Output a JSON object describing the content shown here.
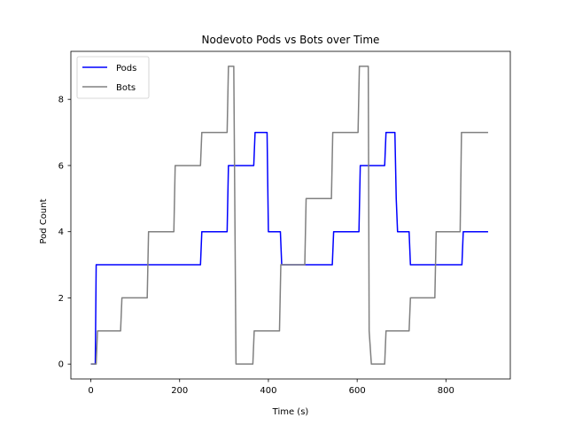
{
  "chart_data": {
    "type": "line",
    "title": "Nodevoto Pods vs Bots over Time",
    "xlabel": "Time (s)",
    "ylabel": "Pod Count",
    "xlim": [
      -45,
      945
    ],
    "ylim": [
      -0.45,
      9.45
    ],
    "xticks": [
      0,
      200,
      400,
      600,
      800
    ],
    "yticks": [
      0,
      2,
      4,
      6,
      8
    ],
    "legend_position": "top-left",
    "series": [
      {
        "name": "Pods",
        "color": "#0000ff",
        "x": [
          0,
          10,
          12,
          247,
          250,
          307,
          310,
          367,
          370,
          397,
          400,
          427,
          430,
          544,
          547,
          604,
          607,
          662,
          665,
          685,
          688,
          691,
          717,
          720,
          836,
          839,
          895
        ],
        "y": [
          0,
          0,
          3,
          3,
          4,
          4,
          6,
          6,
          7,
          7,
          4,
          4,
          3,
          3,
          4,
          4,
          6,
          6,
          7,
          7,
          5,
          4,
          4,
          3,
          3,
          4,
          4
        ]
      },
      {
        "name": "Bots",
        "color": "#808080",
        "x": [
          0,
          12,
          15,
          67,
          70,
          127,
          130,
          187,
          190,
          247,
          250,
          307,
          310,
          322,
          327,
          365,
          368,
          425,
          428,
          482,
          485,
          542,
          545,
          602,
          605,
          625,
          627,
          632,
          662,
          665,
          717,
          720,
          775,
          778,
          832,
          835,
          895
        ],
        "y": [
          0,
          0,
          1,
          1,
          2,
          2,
          4,
          4,
          6,
          6,
          7,
          7,
          9,
          9,
          0,
          0,
          1,
          1,
          3,
          3,
          5,
          5,
          7,
          7,
          9,
          9,
          1,
          0,
          0,
          1,
          1,
          2,
          2,
          4,
          4,
          7,
          7
        ]
      }
    ]
  }
}
